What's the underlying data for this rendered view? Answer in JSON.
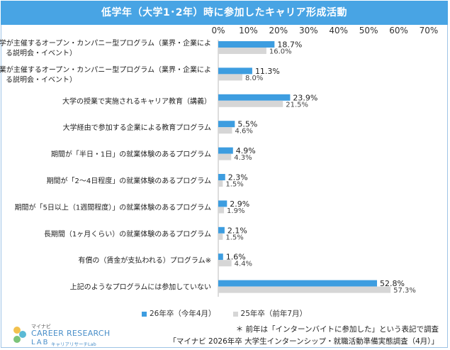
{
  "title": "低学年（大学1･2年）時に参加したキャリア形成活動",
  "chart_data": {
    "type": "bar",
    "orientation": "horizontal",
    "title": "低学年（大学1･2年）時に参加したキャリア形成活動",
    "categories": [
      "大学が主催するオープン・カンパニー型プログラム（業界・企業による説明会・イベント）",
      "企業が主催するオープン・カンパニー型プログラム（業界・企業による説明会・イベント）",
      "大学の授業で実施されるキャリア教育（講義）",
      "大学経由で参加する企業による教育プログラム",
      "期間が「半日・1日」の就業体験のあるプログラム",
      "期間が「2～4日程度」の就業体験のあるプログラム",
      "期間が「5日以上（1週間程度）」の就業体験のあるプログラム",
      "長期間（1ヶ月くらい）の就業体験のあるプログラム",
      "有償の（賃金が支払われる）プログラム※",
      "上記のようなプログラムには参加していない"
    ],
    "category_lines": [
      [
        "大学が主催するオープン・カンパニー型プログラム（業界・企業によ",
        "る説明会・イベント）"
      ],
      [
        "企業が主催するオープン・カンパニー型プログラム（業界・企業によ",
        "る説明会・イベント）"
      ],
      [
        "大学の授業で実施されるキャリア教育（講義）"
      ],
      [
        "大学経由で参加する企業による教育プログラム"
      ],
      [
        "期間が「半日・1日」の就業体験のあるプログラム"
      ],
      [
        "期間が「2～4日程度」の就業体験のあるプログラム"
      ],
      [
        "期間が「5日以上（1週間程度）」の就業体験のあるプログラム"
      ],
      [
        "長期間（1ヶ月くらい）の就業体験のあるプログラム"
      ],
      [
        "有償の（賃金が支払われる）プログラム※"
      ],
      [
        "上記のようなプログラムには参加していない"
      ]
    ],
    "series": [
      {
        "name": "26年卒（今年4月）",
        "color": "#3d9de0",
        "values": [
          18.7,
          11.3,
          23.9,
          5.5,
          4.9,
          2.3,
          2.9,
          2.1,
          1.6,
          52.8
        ],
        "labels": [
          "18.7%",
          "11.3%",
          "23.9%",
          "5.5%",
          "4.9%",
          "2.3%",
          "2.9%",
          "2.1%",
          "1.6%",
          "52.8%"
        ]
      },
      {
        "name": "25年卒（前年7月）",
        "color": "#d6d6d6",
        "values": [
          16.0,
          8.0,
          21.5,
          4.6,
          4.3,
          1.5,
          1.9,
          1.5,
          4.4,
          57.3
        ],
        "labels": [
          "16.0%",
          "8.0%",
          "21.5%",
          "4.6%",
          "4.3%",
          "1.5%",
          "1.9%",
          "1.5%",
          "4.4%",
          "57.3%"
        ]
      }
    ],
    "xlim": [
      0,
      70
    ],
    "xticks": [
      "0%",
      "10%",
      "20%",
      "30%",
      "40%",
      "50%",
      "60%",
      "70%"
    ],
    "grid": false,
    "legend_position": "bottom"
  },
  "legend": {
    "item_current": "26年卒（今年4月）",
    "item_previous": "25年卒（前年7月）"
  },
  "footnote": "＊ 前年は「インターンバイトに参加した」という表記で調査",
  "source": "「マイナビ 2026年卒 大学生インターンシップ・就職活動準備実態調査（4月）」",
  "logo": {
    "maker": "マイナビ",
    "name": "CAREER RESEARCH",
    "lab": "LAB",
    "sub": "キャリアリサーチLab"
  },
  "colors": {
    "title_bg": "#48a4e4",
    "current": "#3d9de0",
    "previous": "#d6d6d6",
    "frame": "#9ec3e6"
  }
}
